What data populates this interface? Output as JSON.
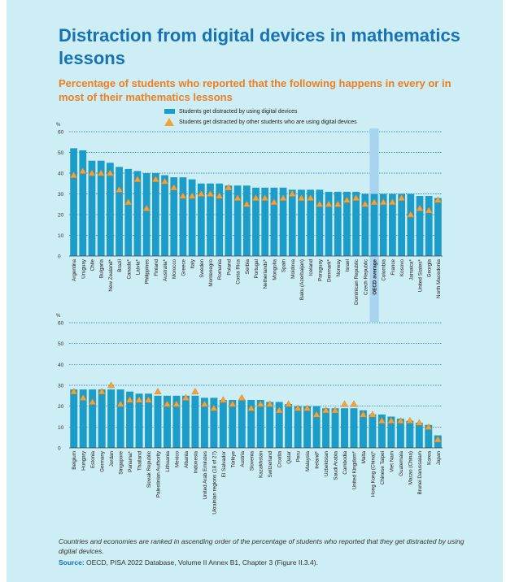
{
  "title": "Distraction from digital devices in mathematics lessons",
  "subtitle": "Percentage of students who reported that the following happens in every or in most of their mathematics lessons",
  "legend": {
    "bar_label": "Students get distracted by using digital devices",
    "marker_label": "Students get distracted by other students who are using digital devices"
  },
  "colors": {
    "bar": "#1b9cc9",
    "marker": "#f2a23a",
    "highlight": "#a8d4f0",
    "title": "#1672b5",
    "subtitle": "#ef7d22"
  },
  "note": "Countries and economies are ranked in ascending order of the percentage of students who reported that they get distracted by using digital devices.",
  "source_label": "Source:",
  "source_text": "OECD, PISA 2022 Database, Volume II Annex B1, Chapter 3 (Figure II.3.4).",
  "chart_data": [
    {
      "type": "bar",
      "ylabel": "%",
      "ylim": [
        0,
        60
      ],
      "yticks": [
        0,
        10,
        20,
        30,
        40,
        50,
        60
      ],
      "grid": true,
      "highlight_category": "OECD average",
      "categories": [
        "Argentina",
        "Uruguay",
        "Chile",
        "Bulgaria",
        "New Zealand*",
        "Brazil",
        "Canada*",
        "Latvia*",
        "Philippines",
        "Finland",
        "Australia*",
        "Morocco",
        "Greece",
        "Italy",
        "Sweden",
        "Montenegro",
        "Romania",
        "Poland",
        "Costa Rica",
        "Serbia",
        "Portugal",
        "Netherlands*",
        "Mongolia",
        "Spain",
        "Moldova",
        "Baku (Azerbaijan)",
        "Iceland",
        "Paraguay",
        "Denmark*",
        "Norway",
        "Israel",
        "Dominican Republic",
        "Czech Republic",
        "OECD average",
        "Colombia",
        "France",
        "Kosovo",
        "Jamaica*",
        "United States*",
        "Georgia",
        "North Macedonia"
      ],
      "series": [
        {
          "name": "Students get distracted by using digital devices",
          "kind": "bar",
          "values": [
            52,
            51,
            46,
            46,
            45,
            43,
            42,
            41,
            40,
            40,
            39,
            38,
            38,
            37,
            35,
            35,
            35,
            34,
            34,
            34,
            33,
            33,
            33,
            33,
            32,
            32,
            32,
            32,
            31,
            31,
            31,
            31,
            30,
            30,
            30,
            30,
            30,
            30,
            29,
            29,
            28
          ]
        },
        {
          "name": "Students get distracted by other students who are using digital devices",
          "kind": "marker",
          "values": [
            39,
            41,
            40,
            40,
            40,
            32,
            26,
            37,
            23,
            37,
            36,
            33,
            29,
            29,
            30,
            30,
            29,
            33,
            28,
            25,
            28,
            28,
            26,
            28,
            30,
            28,
            28,
            25,
            25,
            25,
            27,
            28,
            25,
            26,
            26,
            26,
            28,
            20,
            23,
            22,
            27
          ]
        }
      ]
    },
    {
      "type": "bar",
      "ylabel": "%",
      "ylim": [
        0,
        60
      ],
      "yticks": [
        0,
        10,
        20,
        30,
        40,
        50,
        60
      ],
      "grid": true,
      "categories": [
        "Belgium",
        "Hungary",
        "Estonia",
        "Germany",
        "Jordan",
        "Singapore",
        "Panama*",
        "Thailand",
        "Slovak Republic",
        "Palestinian Authority",
        "Lithuania",
        "Mexico",
        "Albania",
        "Indonesia",
        "United Arab Emirates",
        "Ukrainian regions (18 of 27)",
        "El Salvador",
        "Türkiye",
        "Austria",
        "Slovenia",
        "Kazakhstan",
        "Switzerland",
        "Croatia",
        "Qatar",
        "Peru",
        "Malaysia",
        "Ireland*",
        "Uzbekistan",
        "Saudi Arabia",
        "Cambodia",
        "United Kingdom*",
        "Malta",
        "Hong Kong (China)*",
        "Chinese Taipei",
        "Viet Nam",
        "Guatemala",
        "Macao (China)",
        "Brunei Darussalam",
        "Korea",
        "Japan"
      ],
      "series": [
        {
          "name": "Students get distracted by using digital devices",
          "kind": "bar",
          "values": [
            28,
            28,
            28,
            28,
            28,
            28,
            27,
            26,
            26,
            25,
            25,
            25,
            25,
            25,
            24,
            24,
            23,
            23,
            23,
            23,
            23,
            22,
            22,
            21,
            20,
            20,
            20,
            19,
            19,
            19,
            19,
            18,
            16,
            16,
            15,
            14,
            13,
            12,
            11,
            6
          ]
        },
        {
          "name": "Students get distracted by other students who are using digital devices",
          "kind": "marker",
          "values": [
            27,
            24,
            22,
            27,
            30,
            21,
            23,
            23,
            23,
            27,
            21,
            21,
            24,
            27,
            21,
            19,
            23,
            21,
            24,
            19,
            21,
            21,
            18,
            21,
            19,
            19,
            16,
            18,
            18,
            21,
            21,
            16,
            16,
            13,
            13,
            13,
            13,
            12,
            10,
            4
          ]
        }
      ]
    }
  ]
}
